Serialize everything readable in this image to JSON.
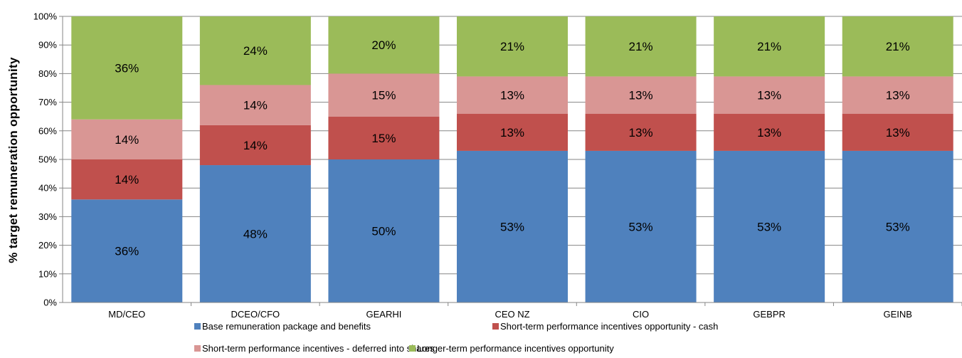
{
  "chart_data": {
    "type": "bar",
    "stacked": true,
    "ylabel": "% target remuneration opportunity",
    "xlabel": "",
    "ylim": [
      0,
      100
    ],
    "y_ticks": [
      "0%",
      "10%",
      "20%",
      "30%",
      "40%",
      "50%",
      "60%",
      "70%",
      "80%",
      "90%",
      "100%"
    ],
    "categories": [
      "MD/CEO",
      "DCEO/CFO",
      "GEARHI",
      "CEO NZ",
      "CIO",
      "GEBPR",
      "GEINB"
    ],
    "series": [
      {
        "name": "Base remuneration package and benefits",
        "color": "#4f81bd",
        "values": [
          36,
          48,
          50,
          53,
          53,
          53,
          53
        ],
        "labels": [
          "36%",
          "48%",
          "50%",
          "53%",
          "53%",
          "53%",
          "53%"
        ]
      },
      {
        "name": "Short-term performance incentives opportunity - cash",
        "color": "#c0504d",
        "values": [
          14,
          14,
          15,
          13,
          13,
          13,
          13
        ],
        "labels": [
          "14%",
          "14%",
          "15%",
          "13%",
          "13%",
          "13%",
          "13%"
        ]
      },
      {
        "name": "Short-term performance incentives - deferred into shares",
        "color": "#d99694",
        "values": [
          14,
          14,
          15,
          13,
          13,
          13,
          13
        ],
        "labels": [
          "14%",
          "14%",
          "15%",
          "13%",
          "13%",
          "13%",
          "13%"
        ]
      },
      {
        "name": "Longer-term performance incentives opportunity",
        "color": "#9bbb59",
        "values": [
          36,
          24,
          20,
          21,
          21,
          21,
          21
        ],
        "labels": [
          "36%",
          "24%",
          "20%",
          "21%",
          "21%",
          "21%",
          "21%"
        ]
      }
    ],
    "grid": true,
    "legend_position": "bottom"
  }
}
